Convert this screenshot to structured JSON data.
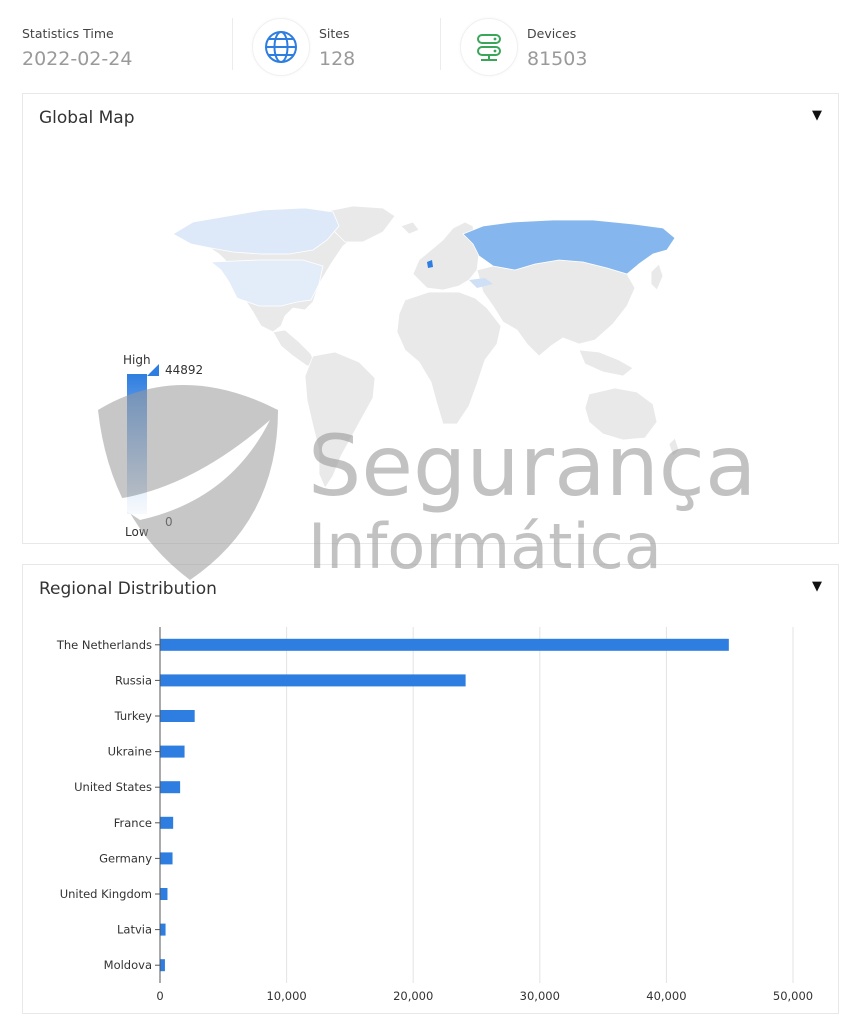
{
  "stats": {
    "time": {
      "label": "Statistics Time",
      "value": "2022-02-24"
    },
    "sites": {
      "label": "Sites",
      "value": "128",
      "icon": "globe-icon"
    },
    "devices": {
      "label": "Devices",
      "value": "81503",
      "icon": "server-icon"
    }
  },
  "colors": {
    "accent": "#2e7de0",
    "map_high": "#2e7de0",
    "map_low": "#e6f0fb",
    "land": "#e9e9e9"
  },
  "map_panel": {
    "title": "Global Map",
    "toggle": "▼",
    "legend": {
      "high_label": "High",
      "low_label": "Low",
      "max_value": "44892",
      "min_value": "0"
    }
  },
  "bar_panel": {
    "title": "Regional Distribution",
    "toggle": "▼"
  },
  "watermark": {
    "line1": "Segurança",
    "line2": "Informática"
  },
  "chart_data": {
    "type": "bar",
    "orientation": "horizontal",
    "categories": [
      "The Netherlands",
      "Russia",
      "Turkey",
      "Ukraine",
      "United States",
      "France",
      "Germany",
      "United Kingdom",
      "Latvia",
      "Moldova"
    ],
    "values": [
      44892,
      24100,
      2700,
      1900,
      1550,
      1000,
      950,
      550,
      400,
      350
    ],
    "xlim": [
      0,
      50000
    ],
    "xticks": [
      "0",
      "10,000",
      "20,000",
      "30,000",
      "40,000",
      "50,000"
    ],
    "grid": true,
    "color": "#2e7de0"
  }
}
